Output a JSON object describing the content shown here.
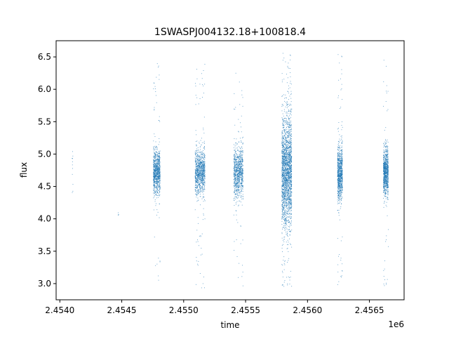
{
  "chart_data": {
    "type": "scatter",
    "title": "1SWASPJ004132.18+100818.4",
    "xlabel": "time",
    "ylabel": "flux",
    "x_offset_label": "1e6",
    "xlim": [
      2453970,
      2456780
    ],
    "ylim": [
      2.75,
      6.75
    ],
    "x_ticks": [
      2454000,
      2454500,
      2455000,
      2455500,
      2456000,
      2456500
    ],
    "x_tick_labels": [
      "2.4540",
      "2.4545",
      "2.4550",
      "2.4555",
      "2.4560",
      "2.4565"
    ],
    "y_ticks": [
      3.0,
      3.5,
      4.0,
      4.5,
      5.0,
      5.5,
      6.0,
      6.5
    ],
    "y_tick_labels": [
      "3.0",
      "3.5",
      "4.0",
      "4.5",
      "5.0",
      "5.5",
      "6.0",
      "6.5"
    ],
    "grid": false,
    "legend": "none",
    "marker_color": "#1f77b4",
    "clusters": [
      {
        "x_center": 2454100,
        "x_width": 6,
        "y_center": 4.85,
        "y_spread": 0.3,
        "y_min": 4.4,
        "y_max": 5.45,
        "points": 12
      },
      {
        "x_center": 2454470,
        "x_width": 4,
        "y_center": 4.1,
        "y_spread": 0.05,
        "y_min": 4.05,
        "y_max": 4.15,
        "points": 4
      },
      {
        "x_center": 2454780,
        "x_width": 55,
        "y_center": 4.72,
        "y_spread": 0.17,
        "y_min": 3.0,
        "y_max": 6.45,
        "points": 900
      },
      {
        "x_center": 2455130,
        "x_width": 80,
        "y_center": 4.72,
        "y_spread": 0.17,
        "y_min": 2.93,
        "y_max": 6.4,
        "points": 1000
      },
      {
        "x_center": 2455440,
        "x_width": 75,
        "y_center": 4.72,
        "y_spread": 0.19,
        "y_min": 2.93,
        "y_max": 6.33,
        "points": 900
      },
      {
        "x_center": 2455830,
        "x_width": 80,
        "y_center": 4.72,
        "y_spread": 0.42,
        "y_min": 2.92,
        "y_max": 6.57,
        "points": 2200
      },
      {
        "x_center": 2456260,
        "x_width": 40,
        "y_center": 4.72,
        "y_spread": 0.2,
        "y_min": 2.93,
        "y_max": 6.55,
        "points": 900
      },
      {
        "x_center": 2456630,
        "x_width": 40,
        "y_center": 4.72,
        "y_spread": 0.18,
        "y_min": 2.93,
        "y_max": 6.57,
        "points": 900
      }
    ]
  }
}
